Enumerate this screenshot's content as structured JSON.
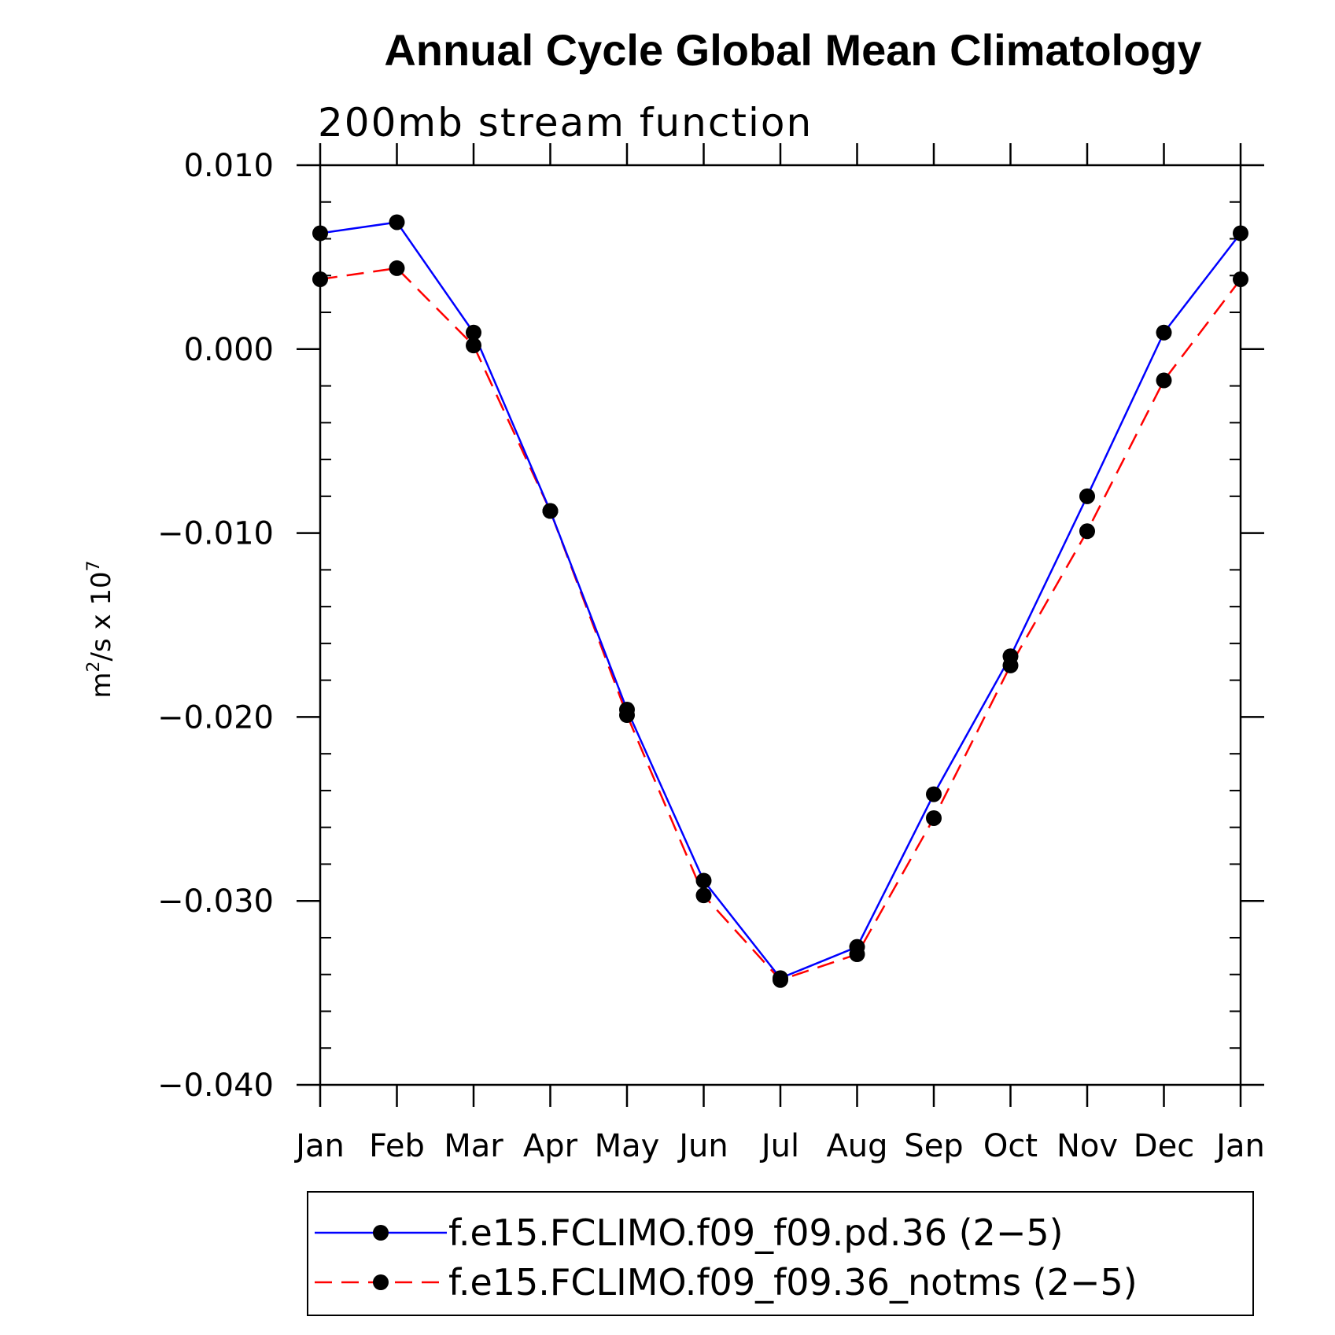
{
  "chart_data": {
    "type": "line",
    "title": "Annual Cycle Global Mean Climatology",
    "subtitle": "200mb stream function",
    "ylabel": {
      "base": "m",
      "sup1": "2",
      "mid": "/s x 10",
      "sup2": "7"
    },
    "xlabel": "",
    "categories": [
      "Jan",
      "Feb",
      "Mar",
      "Apr",
      "May",
      "Jun",
      "Jul",
      "Aug",
      "Sep",
      "Oct",
      "Nov",
      "Dec",
      "Jan"
    ],
    "ylim": [
      -0.04,
      0.01
    ],
    "yticks": [
      0.01,
      0.0,
      -0.01,
      -0.02,
      -0.03,
      -0.04
    ],
    "ytick_labels": [
      "0.010",
      "0.000",
      "−0.010",
      "−0.020",
      "−0.030",
      "−0.040"
    ],
    "grid": false,
    "legend_position": "bottom",
    "series": [
      {
        "name": "f.e15.FCLIMO.f09_f09.pd.36 (2−5)",
        "color": "#0000ff",
        "dash": "solid",
        "marker": "circle",
        "values": [
          0.0063,
          0.0069,
          0.0009,
          -0.0088,
          -0.0196,
          -0.0289,
          -0.0342,
          -0.0325,
          -0.0242,
          -0.0167,
          -0.008,
          0.0009,
          0.0063
        ]
      },
      {
        "name": "f.e15.FCLIMO.f09_f09.36_notms (2−5)",
        "color": "#ff0000",
        "dash": "dashed",
        "marker": "circle",
        "values": [
          0.0038,
          0.0044,
          0.0002,
          -0.0088,
          -0.0199,
          -0.0297,
          -0.0343,
          -0.0329,
          -0.0255,
          -0.0172,
          -0.0099,
          -0.0017,
          0.0038
        ]
      }
    ]
  }
}
